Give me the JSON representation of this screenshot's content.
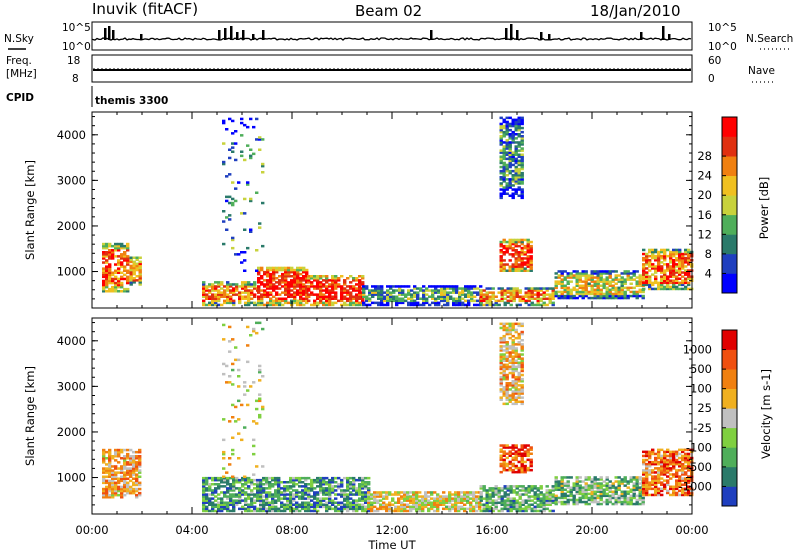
{
  "header": {
    "title": "Inuvik (fitACF)",
    "beam": "Beam 02",
    "date": "18/Jan/2010"
  },
  "panels": {
    "nsky": {
      "label": "N.Sky",
      "right_label": "N.Search",
      "ticks_left": [
        "10^5",
        "10^0"
      ],
      "ticks_right": [
        "10^5",
        "10^0"
      ]
    },
    "freq": {
      "label_line1": "Freq.",
      "label_line2": "[MHz]",
      "right_label": "Nave",
      "ticks_left": [
        "18",
        "8"
      ],
      "ticks_right": [
        "60",
        "0"
      ]
    },
    "cpid": {
      "label": "CPID",
      "program": "themis 3300"
    }
  },
  "chart_data": [
    {
      "type": "heatmap",
      "name": "power",
      "ylabel": "Slant Range [km]",
      "xlabel": "Time UT",
      "x_ticks": [
        "00:00",
        "04:00",
        "08:00",
        "12:00",
        "16:00",
        "20:00",
        "00:00"
      ],
      "y_ticks": [
        1000,
        2000,
        3000,
        4000
      ],
      "ylim": [
        200,
        4500
      ],
      "xlim_hours": [
        0,
        24
      ],
      "colorbar": {
        "label": "Power [dB]",
        "ticks": [
          "4",
          "8",
          "12",
          "16",
          "20",
          "24",
          "28"
        ],
        "colors": [
          "#0000ff",
          "#1f3fbf",
          "#2a7a6a",
          "#4fae5a",
          "#c8d23c",
          "#f0c020",
          "#f08010",
          "#e03010",
          "#ff0000"
        ]
      },
      "regions": [
        {
          "t0": 0.4,
          "t1": 1.4,
          "r0": 550,
          "r1": 1600,
          "level": 0.8
        },
        {
          "t0": 1.5,
          "t1": 1.9,
          "r0": 700,
          "r1": 1300,
          "level": 0.7
        },
        {
          "t0": 4.4,
          "t1": 6.6,
          "r0": 250,
          "r1": 750,
          "level": 0.75
        },
        {
          "t0": 6.6,
          "t1": 8.6,
          "r0": 250,
          "r1": 1100,
          "level": 0.9
        },
        {
          "t0": 8.6,
          "t1": 10.8,
          "r0": 250,
          "r1": 900,
          "level": 0.9
        },
        {
          "t0": 10.8,
          "t1": 15.5,
          "r0": 250,
          "r1": 700,
          "level": 0.35
        },
        {
          "t0": 15.5,
          "t1": 18.5,
          "r0": 250,
          "r1": 650,
          "level": 0.7
        },
        {
          "t0": 16.3,
          "t1": 17.6,
          "r0": 1000,
          "r1": 1700,
          "level": 0.85
        },
        {
          "t0": 18.5,
          "t1": 22.0,
          "r0": 400,
          "r1": 1000,
          "level": 0.55
        },
        {
          "t0": 22.0,
          "t1": 24.0,
          "r0": 600,
          "r1": 1500,
          "level": 0.75
        },
        {
          "t0": 5.2,
          "t1": 6.8,
          "r0": 1000,
          "r1": 4400,
          "level": 0.3
        },
        {
          "t0": 16.3,
          "t1": 17.2,
          "r0": 2600,
          "r1": 4400,
          "level": 0.3
        }
      ]
    },
    {
      "type": "heatmap",
      "name": "velocity",
      "ylabel": "Slant Range [km]",
      "xlabel": "Time UT",
      "x_ticks": [
        "00:00",
        "04:00",
        "08:00",
        "12:00",
        "16:00",
        "20:00",
        "00:00"
      ],
      "y_ticks": [
        1000,
        2000,
        3000,
        4000
      ],
      "ylim": [
        200,
        4500
      ],
      "xlim_hours": [
        0,
        24
      ],
      "colorbar": {
        "label": "Velocity [m s-1]",
        "ticks": [
          "1000",
          "500",
          "100",
          "25",
          "-25",
          "-100",
          "-500",
          "-1000"
        ],
        "colors": [
          "#1f3fbf",
          "#2a7a6a",
          "#4fae5a",
          "#7fd040",
          "#c0c0c0",
          "#f0b020",
          "#f08010",
          "#f05010",
          "#e00000"
        ]
      },
      "regions": [
        {
          "t0": 0.4,
          "t1": 1.9,
          "r0": 550,
          "r1": 1600,
          "level": 0.65
        },
        {
          "t0": 4.4,
          "t1": 11.0,
          "r0": 250,
          "r1": 1000,
          "level": 0.25
        },
        {
          "t0": 11.0,
          "t1": 15.5,
          "r0": 250,
          "r1": 700,
          "level": 0.55
        },
        {
          "t0": 15.5,
          "t1": 18.5,
          "r0": 250,
          "r1": 800,
          "level": 0.3
        },
        {
          "t0": 16.3,
          "t1": 17.6,
          "r0": 1100,
          "r1": 1700,
          "level": 0.8
        },
        {
          "t0": 18.5,
          "t1": 22.0,
          "r0": 400,
          "r1": 1000,
          "level": 0.35
        },
        {
          "t0": 22.0,
          "t1": 24.0,
          "r0": 600,
          "r1": 1600,
          "level": 0.75
        },
        {
          "t0": 5.2,
          "t1": 6.8,
          "r0": 1000,
          "r1": 4400,
          "level": 0.5
        },
        {
          "t0": 16.3,
          "t1": 17.2,
          "r0": 2600,
          "r1": 4400,
          "level": 0.6
        }
      ]
    }
  ],
  "time_label": "Time UT"
}
